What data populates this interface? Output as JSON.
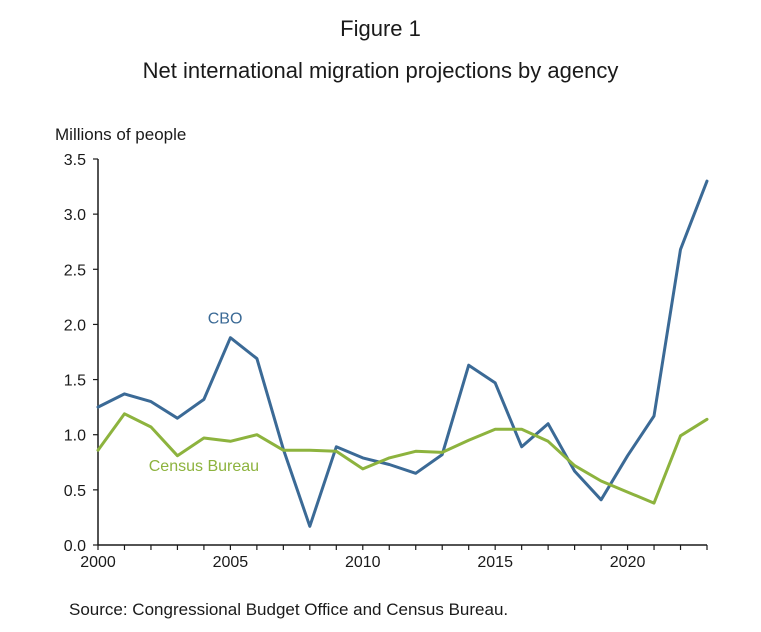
{
  "figure_label": "Figure 1",
  "title": "Net international migration projections by agency",
  "y_unit_label": "Millions of people",
  "source": "Source: Congressional Budget Office and Census Bureau.",
  "colors": {
    "cbo": "#3b6a96",
    "census": "#8db33e",
    "axis": "#1a1a1a"
  },
  "chart_data": {
    "type": "line",
    "title": "Net international migration projections by agency",
    "ylabel": "Millions of people",
    "xlabel": "",
    "xlim": [
      2000,
      2023
    ],
    "ylim": [
      0,
      3.5
    ],
    "grid": false,
    "x_ticks": [
      2000,
      2005,
      2010,
      2015,
      2020
    ],
    "y_ticks": [
      "0.0",
      "0.5",
      "1.0",
      "1.5",
      "2.0",
      "2.5",
      "3.0",
      "3.5"
    ],
    "x": [
      2000,
      2001,
      2002,
      2003,
      2004,
      2005,
      2006,
      2007,
      2008,
      2009,
      2010,
      2011,
      2012,
      2013,
      2014,
      2015,
      2016,
      2017,
      2018,
      2019,
      2020,
      2021,
      2022,
      2023
    ],
    "series": [
      {
        "name": "CBO",
        "color": "#3b6a96",
        "values": [
          1.25,
          1.37,
          1.3,
          1.15,
          1.32,
          1.88,
          1.69,
          0.87,
          0.17,
          0.89,
          0.79,
          0.73,
          0.65,
          0.82,
          1.63,
          1.47,
          0.89,
          1.1,
          0.67,
          0.41,
          0.81,
          1.17,
          2.68,
          3.3
        ]
      },
      {
        "name": "Census Bureau",
        "color": "#8db33e",
        "values": [
          0.86,
          1.19,
          1.07,
          0.81,
          0.97,
          0.94,
          1.0,
          0.86,
          0.86,
          0.85,
          0.69,
          0.79,
          0.85,
          0.84,
          0.95,
          1.05,
          1.05,
          0.94,
          0.72,
          0.58,
          0.48,
          0.38,
          0.99,
          1.14
        ]
      }
    ],
    "annotations": [
      {
        "text": "CBO",
        "series": "CBO",
        "x": 2004.8,
        "y": 2.01
      },
      {
        "text": "Census Bureau",
        "series": "Census Bureau",
        "x": 2004.0,
        "y": 0.67
      }
    ]
  }
}
